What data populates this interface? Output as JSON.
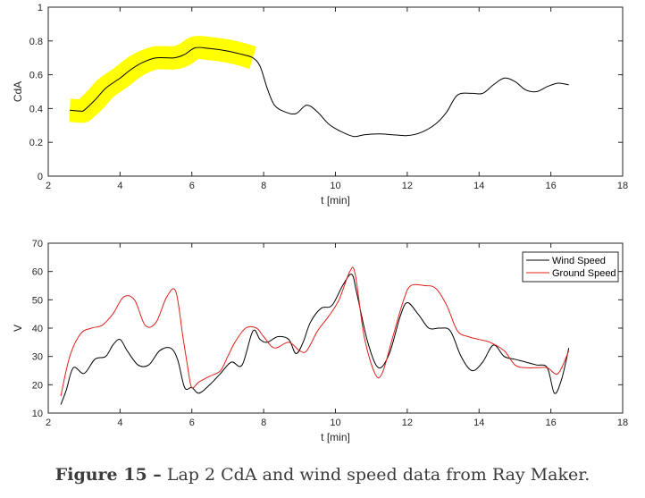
{
  "chart_data": [
    {
      "type": "line",
      "xlabel": "t [min]",
      "ylabel": "CdA",
      "xlim": [
        2,
        18
      ],
      "ylim": [
        0,
        1
      ],
      "xticks": [
        2,
        4,
        6,
        8,
        10,
        12,
        14,
        16,
        18
      ],
      "yticks": [
        0,
        0.2,
        0.4,
        0.6,
        0.8,
        1
      ],
      "xtick_labels": [
        "2",
        "4",
        "6",
        "8",
        "10",
        "12",
        "14",
        "16",
        "18"
      ],
      "ytick_labels": [
        "0",
        "0.2",
        "0.4",
        "0.6",
        "0.8",
        "1"
      ],
      "grid": false,
      "highlight": {
        "x_range": [
          2.6,
          7.8
        ],
        "color": "#ffff00"
      },
      "series": [
        {
          "color": "#000000",
          "x": [
            2.6,
            2.9,
            3.0,
            3.3,
            3.6,
            4.0,
            4.3,
            4.6,
            5.0,
            5.5,
            5.8,
            6.1,
            6.5,
            7.0,
            7.4,
            7.7,
            7.9,
            8.1,
            8.3,
            8.6,
            8.9,
            9.2,
            9.5,
            9.8,
            10.1,
            10.5,
            10.8,
            11.2,
            11.6,
            12.0,
            12.4,
            12.8,
            13.1,
            13.4,
            13.8,
            14.1,
            14.4,
            14.7,
            15.0,
            15.3,
            15.6,
            15.9,
            16.2,
            16.5
          ],
          "y": [
            0.39,
            0.385,
            0.39,
            0.45,
            0.52,
            0.58,
            0.63,
            0.67,
            0.7,
            0.7,
            0.72,
            0.76,
            0.755,
            0.74,
            0.72,
            0.7,
            0.65,
            0.52,
            0.42,
            0.38,
            0.37,
            0.42,
            0.38,
            0.31,
            0.27,
            0.235,
            0.245,
            0.25,
            0.245,
            0.24,
            0.26,
            0.31,
            0.38,
            0.48,
            0.49,
            0.49,
            0.54,
            0.58,
            0.56,
            0.51,
            0.5,
            0.53,
            0.55,
            0.54
          ]
        }
      ]
    },
    {
      "type": "line",
      "xlabel": "t [min]",
      "ylabel": "V",
      "xlim": [
        2,
        18
      ],
      "ylim": [
        10,
        70
      ],
      "xticks": [
        2,
        4,
        6,
        8,
        10,
        12,
        14,
        16,
        18
      ],
      "yticks": [
        10,
        20,
        30,
        40,
        50,
        60,
        70
      ],
      "xtick_labels": [
        "2",
        "4",
        "6",
        "8",
        "10",
        "12",
        "14",
        "16",
        "18"
      ],
      "ytick_labels": [
        "10",
        "20",
        "30",
        "40",
        "50",
        "60",
        "70"
      ],
      "grid": false,
      "legend_position": "top-right",
      "series": [
        {
          "name": "Wind Speed",
          "color": "#000000",
          "x": [
            2.35,
            2.5,
            2.7,
            3.0,
            3.3,
            3.6,
            3.8,
            4.0,
            4.2,
            4.5,
            4.8,
            5.1,
            5.4,
            5.6,
            5.8,
            6.0,
            6.2,
            6.5,
            6.8,
            7.1,
            7.4,
            7.7,
            7.9,
            8.1,
            8.4,
            8.7,
            8.9,
            9.1,
            9.3,
            9.6,
            9.9,
            10.2,
            10.45,
            10.6,
            10.9,
            11.2,
            11.5,
            11.8,
            12.0,
            12.3,
            12.6,
            12.9,
            13.2,
            13.5,
            13.8,
            14.1,
            14.4,
            14.7,
            15.0,
            15.3,
            15.6,
            15.9,
            16.1,
            16.3,
            16.5
          ],
          "y": [
            13,
            18,
            26,
            24,
            29,
            30,
            34,
            36,
            32,
            27,
            27,
            32,
            33,
            29,
            19,
            19,
            17,
            20,
            24,
            28,
            27,
            39,
            36,
            35,
            37,
            36,
            31,
            35,
            42,
            47,
            48,
            55,
            59,
            52,
            35,
            26,
            31,
            44,
            49,
            45,
            40,
            40,
            39,
            30,
            25,
            28,
            34,
            30,
            29,
            28,
            27,
            26,
            17,
            22,
            33
          ]
        },
        {
          "name": "Ground Speed",
          "color": "#e0201a",
          "x": [
            2.35,
            2.6,
            2.9,
            3.2,
            3.5,
            3.8,
            4.1,
            4.4,
            4.7,
            5.0,
            5.3,
            5.55,
            5.75,
            5.9,
            6.0,
            6.2,
            6.5,
            6.8,
            7.0,
            7.2,
            7.5,
            7.8,
            8.0,
            8.3,
            8.7,
            9.0,
            9.2,
            9.5,
            9.8,
            10.1,
            10.4,
            10.55,
            10.8,
            11.1,
            11.3,
            11.6,
            11.9,
            12.1,
            12.5,
            12.8,
            13.1,
            13.4,
            13.7,
            14.0,
            14.3,
            14.7,
            15.0,
            15.3,
            15.6,
            15.9,
            16.2,
            16.5
          ],
          "y": [
            16,
            30,
            38,
            40,
            41,
            45,
            51,
            50,
            41,
            42,
            51,
            53,
            37,
            25,
            19,
            21,
            23,
            25,
            30,
            35,
            40,
            40,
            37,
            33,
            35,
            32,
            32,
            39,
            44,
            50,
            60,
            59,
            37,
            24,
            24,
            37,
            50,
            55,
            55,
            54,
            48,
            39,
            37,
            36,
            35,
            32,
            27,
            26,
            26,
            26,
            24,
            32
          ]
        }
      ]
    }
  ],
  "caption": {
    "label": "Figure 15 –",
    "text": "Lap 2 CdA and wind speed data from Ray Maker."
  }
}
